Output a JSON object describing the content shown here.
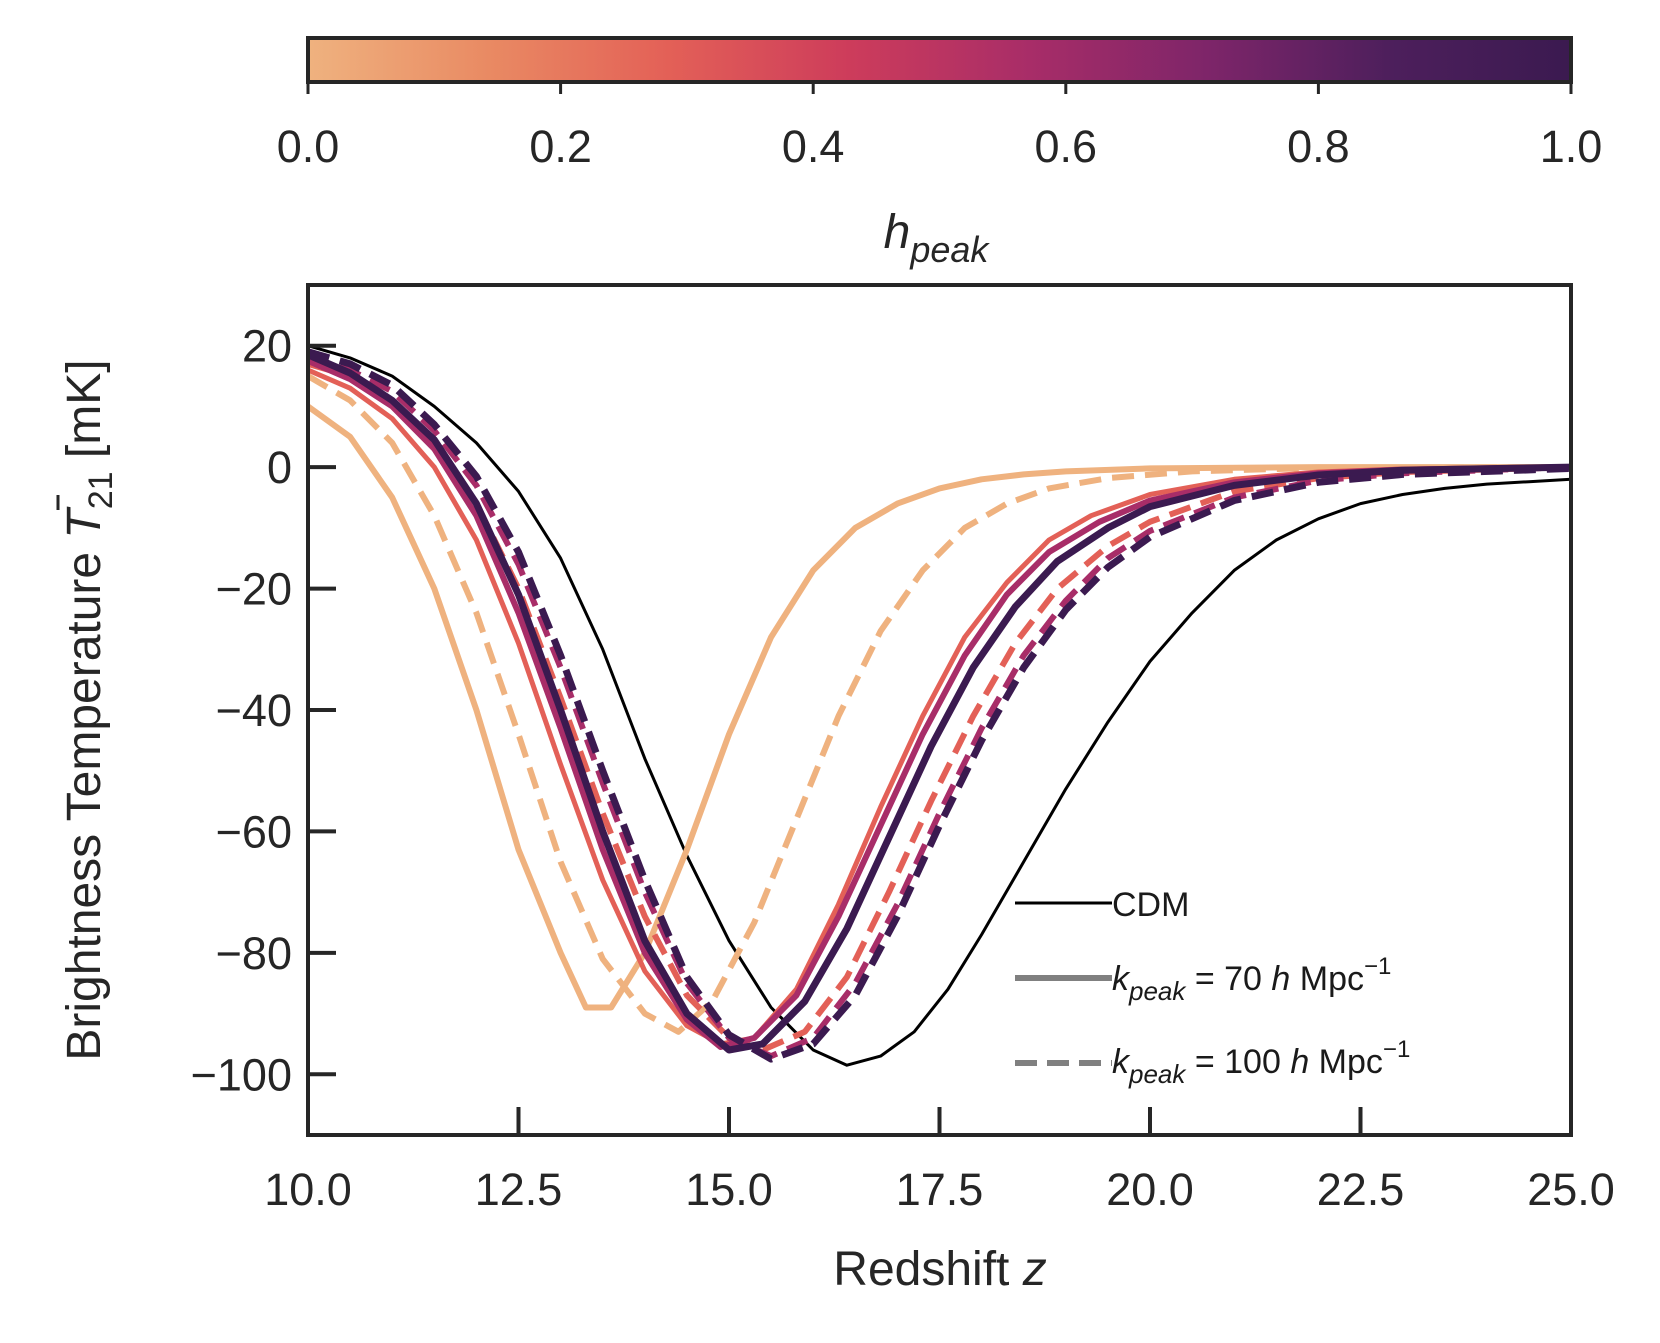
{
  "chart_data": {
    "type": "line",
    "xlabel_main": "Redshift ",
    "xlabel_var": "z",
    "ylabel_main": "Brightness Temperature ",
    "ylabel_symbol": "T",
    "ylabel_sub": "21",
    "ylabel_unit": " [mK]",
    "xlim": [
      10.0,
      25.0
    ],
    "ylim": [
      -110,
      30
    ],
    "xticks": [
      10.0,
      12.5,
      15.0,
      17.5,
      20.0,
      22.5,
      25.0
    ],
    "xtick_labels": [
      "10.0",
      "12.5",
      "15.0",
      "17.5",
      "20.0",
      "22.5",
      "25.0"
    ],
    "yticks": [
      20,
      0,
      -20,
      -40,
      -60,
      -80,
      -100
    ],
    "ytick_labels": [
      "20",
      "0",
      "−20",
      "−40",
      "−60",
      "−80",
      "−100"
    ],
    "colorbar": {
      "label_main": "h",
      "label_sub": "peak",
      "range": [
        0.0,
        1.0
      ],
      "ticks": [
        "0.0",
        "0.2",
        "0.4",
        "0.6",
        "0.8",
        "1.0"
      ],
      "colormap": "flare",
      "colors": [
        "#efb27f",
        "#e98a63",
        "#e36057",
        "#cd3c5b",
        "#a82d68",
        "#7d2569",
        "#4d1f5c",
        "#3b1a50"
      ]
    },
    "legend": {
      "position": "lower-right",
      "entries": [
        {
          "label": "CDM",
          "style": "solid-thin",
          "color": "#000000"
        },
        {
          "label_pre": "k",
          "label_sub": "peak",
          "label_post": " = 70 ",
          "label_h": "h",
          "label_unit": " Mpc",
          "label_exp": "−1",
          "style": "solid",
          "color": "#808080"
        },
        {
          "label_pre": "k",
          "label_sub": "peak",
          "label_post": " = 100 ",
          "label_h": "h",
          "label_unit": " Mpc",
          "label_exp": "−1",
          "style": "dashed",
          "color": "#808080"
        }
      ]
    },
    "series": [
      {
        "name": "CDM",
        "color": "#000000",
        "style": "solid-thin",
        "width": 3,
        "points": [
          [
            10.0,
            20
          ],
          [
            10.5,
            18
          ],
          [
            11,
            15
          ],
          [
            11.5,
            10
          ],
          [
            12,
            4
          ],
          [
            12.5,
            -4
          ],
          [
            13,
            -15
          ],
          [
            13.5,
            -30
          ],
          [
            14,
            -48
          ],
          [
            14.5,
            -64
          ],
          [
            15,
            -78
          ],
          [
            15.5,
            -89
          ],
          [
            16,
            -96
          ],
          [
            16.4,
            -98.5
          ],
          [
            16.8,
            -97
          ],
          [
            17.2,
            -93
          ],
          [
            17.6,
            -86
          ],
          [
            18,
            -77
          ],
          [
            18.5,
            -65
          ],
          [
            19,
            -53
          ],
          [
            19.5,
            -42
          ],
          [
            20,
            -32
          ],
          [
            20.5,
            -24
          ],
          [
            21,
            -17
          ],
          [
            21.5,
            -12
          ],
          [
            22,
            -8.5
          ],
          [
            22.5,
            -6
          ],
          [
            23,
            -4.5
          ],
          [
            23.5,
            -3.5
          ],
          [
            24,
            -2.8
          ],
          [
            24.5,
            -2.4
          ],
          [
            25,
            -2
          ]
        ]
      },
      {
        "name": "h_peak=0.0, k_peak=70",
        "color": "#efb27f",
        "style": "solid",
        "width": 6,
        "points": [
          [
            10,
            10
          ],
          [
            10.5,
            5
          ],
          [
            11,
            -5
          ],
          [
            11.5,
            -20
          ],
          [
            12,
            -40
          ],
          [
            12.5,
            -63
          ],
          [
            13,
            -80
          ],
          [
            13.3,
            -89
          ],
          [
            13.6,
            -89
          ],
          [
            14,
            -80
          ],
          [
            14.5,
            -63
          ],
          [
            15,
            -44
          ],
          [
            15.5,
            -28
          ],
          [
            16,
            -17
          ],
          [
            16.5,
            -10
          ],
          [
            17,
            -6
          ],
          [
            17.5,
            -3.5
          ],
          [
            18,
            -2
          ],
          [
            18.5,
            -1.2
          ],
          [
            19,
            -0.7
          ],
          [
            20,
            -0.2
          ],
          [
            22,
            0
          ],
          [
            25,
            0
          ]
        ]
      },
      {
        "name": "h_peak=0.0, k_peak=100",
        "color": "#efb27f",
        "style": "dashed",
        "width": 6,
        "points": [
          [
            10,
            15
          ],
          [
            10.5,
            11
          ],
          [
            11,
            4
          ],
          [
            11.5,
            -8
          ],
          [
            12,
            -24
          ],
          [
            12.5,
            -44
          ],
          [
            13,
            -65
          ],
          [
            13.5,
            -81
          ],
          [
            14,
            -90
          ],
          [
            14.4,
            -93
          ],
          [
            14.8,
            -88
          ],
          [
            15.3,
            -75
          ],
          [
            15.8,
            -58
          ],
          [
            16.3,
            -41
          ],
          [
            16.8,
            -27
          ],
          [
            17.3,
            -17
          ],
          [
            17.8,
            -10
          ],
          [
            18.3,
            -6
          ],
          [
            18.8,
            -3.5
          ],
          [
            19.5,
            -1.8
          ],
          [
            20.5,
            -0.7
          ],
          [
            22,
            -0.1
          ],
          [
            25,
            0
          ]
        ]
      },
      {
        "name": "h_peak~0.3, k_peak=70",
        "color": "#e36057",
        "style": "solid",
        "width": 5,
        "points": [
          [
            10,
            16
          ],
          [
            10.5,
            13
          ],
          [
            11,
            8
          ],
          [
            11.5,
            0
          ],
          [
            12,
            -12
          ],
          [
            12.5,
            -29
          ],
          [
            13,
            -49
          ],
          [
            13.5,
            -68
          ],
          [
            14,
            -83
          ],
          [
            14.5,
            -92
          ],
          [
            14.9,
            -95
          ],
          [
            15.3,
            -94
          ],
          [
            15.8,
            -86
          ],
          [
            16.3,
            -72
          ],
          [
            16.8,
            -56
          ],
          [
            17.3,
            -41
          ],
          [
            17.8,
            -28
          ],
          [
            18.3,
            -19
          ],
          [
            18.8,
            -12
          ],
          [
            19.3,
            -8
          ],
          [
            20,
            -4.5
          ],
          [
            21,
            -2
          ],
          [
            22,
            -0.8
          ],
          [
            23,
            -0.3
          ],
          [
            25,
            0
          ]
        ]
      },
      {
        "name": "h_peak~0.3, k_peak=100",
        "color": "#e36057",
        "style": "dashed",
        "width": 6,
        "points": [
          [
            10,
            17
          ],
          [
            10.5,
            15
          ],
          [
            11,
            11
          ],
          [
            11.5,
            4
          ],
          [
            12,
            -6
          ],
          [
            12.5,
            -20
          ],
          [
            13,
            -38
          ],
          [
            13.5,
            -57
          ],
          [
            14,
            -74
          ],
          [
            14.5,
            -87
          ],
          [
            15,
            -94
          ],
          [
            15.4,
            -96
          ],
          [
            15.9,
            -93
          ],
          [
            16.4,
            -84
          ],
          [
            16.9,
            -70
          ],
          [
            17.4,
            -55
          ],
          [
            17.9,
            -41
          ],
          [
            18.4,
            -29
          ],
          [
            18.9,
            -20
          ],
          [
            19.5,
            -13
          ],
          [
            20,
            -9
          ],
          [
            21,
            -4
          ],
          [
            22,
            -1.8
          ],
          [
            23,
            -0.8
          ],
          [
            25,
            0
          ]
        ]
      },
      {
        "name": "h_peak~0.6, k_peak=70",
        "color": "#a82d68",
        "style": "solid",
        "width": 6,
        "points": [
          [
            10,
            17.5
          ],
          [
            10.5,
            14.5
          ],
          [
            11,
            10
          ],
          [
            11.5,
            3
          ],
          [
            12,
            -8
          ],
          [
            12.5,
            -24
          ],
          [
            13,
            -43
          ],
          [
            13.5,
            -63
          ],
          [
            14,
            -80
          ],
          [
            14.5,
            -91
          ],
          [
            14.9,
            -95.5
          ],
          [
            15.3,
            -94
          ],
          [
            15.8,
            -87
          ],
          [
            16.3,
            -74
          ],
          [
            16.8,
            -59
          ],
          [
            17.3,
            -44
          ],
          [
            17.8,
            -31
          ],
          [
            18.3,
            -21
          ],
          [
            18.8,
            -14
          ],
          [
            19.4,
            -9
          ],
          [
            20,
            -5.5
          ],
          [
            21,
            -2.5
          ],
          [
            22,
            -1
          ],
          [
            23,
            -0.4
          ],
          [
            25,
            0
          ]
        ]
      },
      {
        "name": "h_peak~0.6, k_peak=100",
        "color": "#a82d68",
        "style": "dashed",
        "width": 6,
        "points": [
          [
            10,
            18
          ],
          [
            10.5,
            16
          ],
          [
            11,
            12.5
          ],
          [
            11.5,
            6
          ],
          [
            12,
            -3
          ],
          [
            12.5,
            -16
          ],
          [
            13,
            -33
          ],
          [
            13.5,
            -52
          ],
          [
            14,
            -70
          ],
          [
            14.5,
            -85
          ],
          [
            15,
            -94
          ],
          [
            15.5,
            -97
          ],
          [
            16,
            -94
          ],
          [
            16.5,
            -85
          ],
          [
            17,
            -72
          ],
          [
            17.5,
            -57
          ],
          [
            18,
            -43
          ],
          [
            18.5,
            -31
          ],
          [
            19,
            -22
          ],
          [
            19.5,
            -15
          ],
          [
            20,
            -10.5
          ],
          [
            21,
            -5
          ],
          [
            22,
            -2.2
          ],
          [
            23,
            -1
          ],
          [
            25,
            0
          ]
        ]
      },
      {
        "name": "h_peak=1.0, k_peak=70",
        "color": "#3b1a50",
        "style": "solid",
        "width": 7,
        "points": [
          [
            10,
            18.5
          ],
          [
            10.5,
            15.5
          ],
          [
            11,
            11
          ],
          [
            11.5,
            4.5
          ],
          [
            12,
            -6
          ],
          [
            12.5,
            -21
          ],
          [
            13,
            -40
          ],
          [
            13.5,
            -60
          ],
          [
            14,
            -78
          ],
          [
            14.5,
            -90
          ],
          [
            15,
            -96
          ],
          [
            15.4,
            -95
          ],
          [
            15.9,
            -88
          ],
          [
            16.4,
            -76
          ],
          [
            16.9,
            -61
          ],
          [
            17.4,
            -46
          ],
          [
            17.9,
            -33
          ],
          [
            18.4,
            -23
          ],
          [
            18.9,
            -15.5
          ],
          [
            19.5,
            -10
          ],
          [
            20,
            -6.5
          ],
          [
            21,
            -3
          ],
          [
            22,
            -1.3
          ],
          [
            23,
            -0.5
          ],
          [
            25,
            0
          ]
        ]
      },
      {
        "name": "h_peak=1.0, k_peak=100",
        "color": "#3b1a50",
        "style": "dashed",
        "width": 7,
        "points": [
          [
            10,
            19
          ],
          [
            10.5,
            17
          ],
          [
            11,
            13.5
          ],
          [
            11.5,
            7
          ],
          [
            12,
            -1.5
          ],
          [
            12.5,
            -14
          ],
          [
            13,
            -31
          ],
          [
            13.5,
            -50
          ],
          [
            14,
            -68
          ],
          [
            14.5,
            -84
          ],
          [
            15,
            -93.5
          ],
          [
            15.5,
            -97.5
          ],
          [
            16,
            -95
          ],
          [
            16.5,
            -87
          ],
          [
            17,
            -74
          ],
          [
            17.5,
            -59
          ],
          [
            18,
            -45
          ],
          [
            18.5,
            -33
          ],
          [
            19,
            -23.5
          ],
          [
            19.5,
            -16.5
          ],
          [
            20,
            -11.5
          ],
          [
            21,
            -5.5
          ],
          [
            22,
            -2.5
          ],
          [
            23,
            -1.2
          ],
          [
            25,
            -0.2
          ]
        ]
      }
    ]
  }
}
